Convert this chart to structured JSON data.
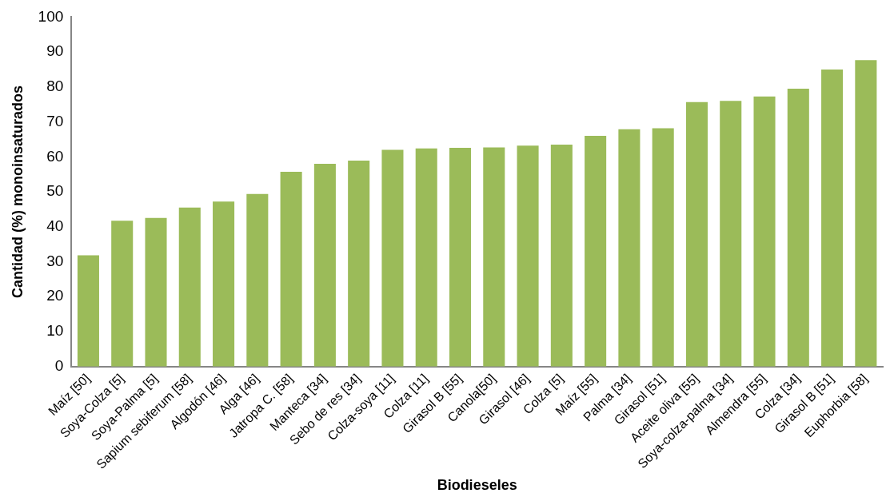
{
  "chart_data": {
    "type": "bar",
    "xlabel": "Biodieseles",
    "ylabel": "Cantidad (%) monoinsaturados",
    "categories": [
      "Maíz [50]",
      "Soya-Colza [5]",
      "Soya-Palma [5]",
      "Sapium sebiferum [58]",
      "Algodón [46]",
      "Alga [46]",
      "Jatropa C. [58]",
      "Manteca [34]",
      "Sebo de res [34]",
      "Colza-soya [11]",
      "Colza [11]",
      "Girasol B [55]",
      "Canola[50]",
      "Girasol [46]",
      "Colza [5]",
      "Maíz [55]",
      "Palma [34]",
      "Girasol [51]",
      "Aceite oliva [55]",
      "Soya-colza-palma [34]",
      "Almendra [55]",
      "Colza [34]",
      "Girasol B [51]",
      "Euphorbia [58]"
    ],
    "values": [
      31.8,
      41.7,
      42.5,
      45.5,
      47.2,
      49.4,
      55.7,
      58.0,
      58.9,
      62.0,
      62.4,
      62.6,
      62.7,
      63.2,
      63.5,
      66.0,
      67.9,
      68.2,
      75.7,
      76.0,
      77.3,
      79.5,
      85.0,
      87.7
    ],
    "color": "#9bbb59",
    "ylim": [
      0,
      100
    ],
    "yticks": [
      0,
      10,
      20,
      30,
      40,
      50,
      60,
      70,
      80,
      90,
      100
    ],
    "grid": false,
    "legend": false
  }
}
